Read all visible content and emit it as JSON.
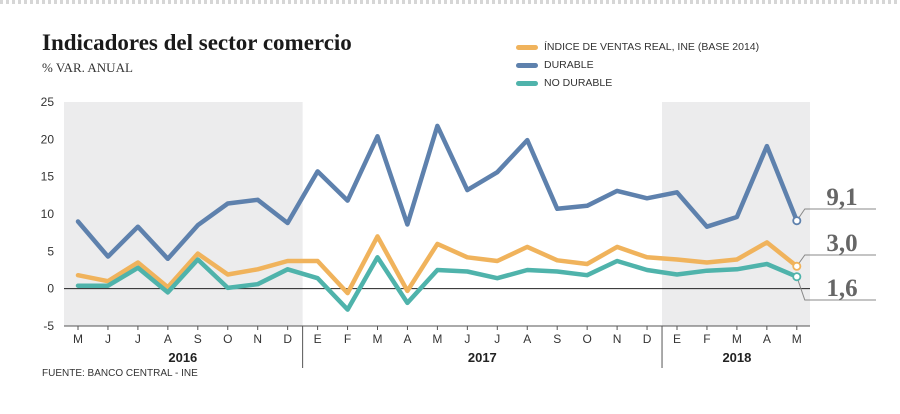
{
  "title": "Indicadores del sector comercio",
  "subtitle": "% VAR. ANUAL",
  "source": "FUENTE: BANCO CENTRAL - INE",
  "chart_data": {
    "type": "line",
    "title": "Indicadores del sector comercio",
    "subtitle": "% VAR. ANUAL",
    "ylim": [
      -5,
      25
    ],
    "yticks": [
      "25",
      "20",
      "15",
      "10",
      "5",
      "0",
      "-5"
    ],
    "grid": false,
    "legend_position": "top-right",
    "categories": [
      "M",
      "J",
      "J",
      "A",
      "S",
      "O",
      "N",
      "D",
      "E",
      "F",
      "M",
      "A",
      "M",
      "J",
      "J",
      "A",
      "S",
      "O",
      "N",
      "D",
      "E",
      "F",
      "M",
      "A",
      "M"
    ],
    "years": [
      {
        "label": "2016",
        "from": 0,
        "to": 7
      },
      {
        "label": "2017",
        "from": 8,
        "to": 19
      },
      {
        "label": "2018",
        "from": 20,
        "to": 24
      }
    ],
    "series": [
      {
        "name": "ÍNDICE DE VENTAS REAL, INE (BASE 2014)",
        "color": "#f0b35c",
        "values": [
          1.8,
          1.0,
          3.5,
          0.2,
          4.7,
          1.9,
          2.6,
          3.7,
          3.7,
          -0.6,
          7.0,
          -0.3,
          6.0,
          4.2,
          3.7,
          5.6,
          3.8,
          3.3,
          5.6,
          4.2,
          3.9,
          3.5,
          3.9,
          6.2,
          3.0
        ],
        "end_label": "3,0"
      },
      {
        "name": "DURABLE",
        "color": "#5e81ad",
        "values": [
          9.0,
          4.3,
          8.3,
          4.0,
          8.5,
          11.4,
          11.9,
          8.8,
          15.7,
          11.8,
          20.4,
          8.6,
          21.8,
          13.2,
          15.6,
          19.9,
          10.7,
          11.1,
          13.1,
          12.1,
          12.9,
          8.3,
          9.6,
          19.1,
          9.1
        ],
        "end_label": "9,1"
      },
      {
        "name": "NO DURABLE",
        "color": "#4fb3ab",
        "values": [
          0.4,
          0.4,
          2.8,
          -0.5,
          3.9,
          0.1,
          0.6,
          2.6,
          1.4,
          -2.8,
          4.2,
          -1.9,
          2.5,
          2.3,
          1.4,
          2.5,
          2.3,
          1.8,
          3.7,
          2.5,
          1.9,
          2.4,
          2.6,
          3.3,
          1.6
        ],
        "end_label": "1,6"
      }
    ]
  }
}
